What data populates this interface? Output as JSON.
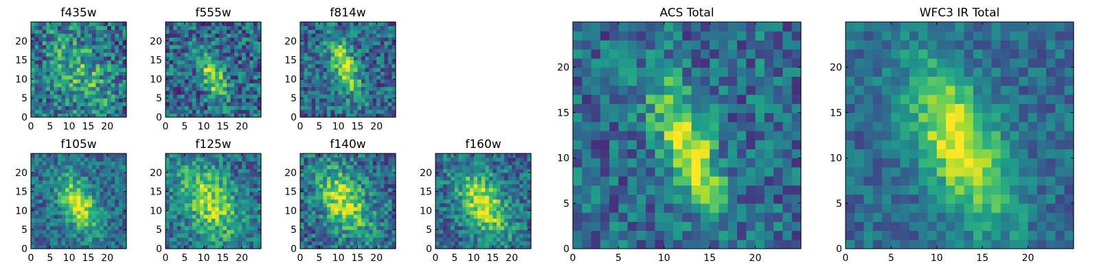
{
  "chart_data": [
    {
      "type": "heatmap",
      "title": "f435w",
      "grid_size": 25,
      "xlim": [
        0,
        25
      ],
      "ylim": [
        0,
        25
      ],
      "x_ticks": [
        0,
        5,
        10,
        15,
        20
      ],
      "y_ticks": [
        0,
        5,
        10,
        15,
        20
      ],
      "colormap": "viridis",
      "grid": false,
      "peak": [
        12,
        11
      ],
      "noise": 0.6,
      "spread": [
        5,
        7
      ],
      "strength": 0.45
    },
    {
      "type": "heatmap",
      "title": "f555w",
      "grid_size": 25,
      "xlim": [
        0,
        25
      ],
      "ylim": [
        0,
        25
      ],
      "x_ticks": [
        0,
        5,
        10,
        15,
        20
      ],
      "y_ticks": [
        0,
        5,
        10,
        15,
        20
      ],
      "colormap": "viridis",
      "grid": false,
      "peak": [
        12,
        10
      ],
      "noise": 0.55,
      "spread": [
        2,
        4
      ],
      "strength": 0.8
    },
    {
      "type": "heatmap",
      "title": "f814w",
      "grid_size": 25,
      "xlim": [
        0,
        25
      ],
      "ylim": [
        0,
        25
      ],
      "x_ticks": [
        0,
        5,
        10,
        15,
        20
      ],
      "y_ticks": [
        0,
        5,
        10,
        15,
        20
      ],
      "colormap": "viridis",
      "grid": false,
      "peak": [
        11,
        13
      ],
      "noise": 0.5,
      "spread": [
        2,
        5
      ],
      "strength": 0.9
    },
    {
      "type": "heatmap",
      "title": "f105w",
      "grid_size": 25,
      "xlim": [
        0,
        25
      ],
      "ylim": [
        0,
        25
      ],
      "x_ticks": [
        0,
        5,
        10,
        15,
        20
      ],
      "y_ticks": [
        0,
        5,
        10,
        15,
        20
      ],
      "colormap": "viridis",
      "grid": false,
      "peak": [
        12,
        11
      ],
      "noise": 0.4,
      "spread": [
        3,
        5
      ],
      "strength": 0.9
    },
    {
      "type": "heatmap",
      "title": "f125w",
      "grid_size": 25,
      "xlim": [
        0,
        25
      ],
      "ylim": [
        0,
        25
      ],
      "x_ticks": [
        0,
        5,
        10,
        15,
        20
      ],
      "y_ticks": [
        0,
        5,
        10,
        15,
        20
      ],
      "colormap": "viridis",
      "grid": false,
      "peak": [
        11,
        12
      ],
      "noise": 0.45,
      "spread": [
        5,
        7
      ],
      "strength": 0.75
    },
    {
      "type": "heatmap",
      "title": "f140w",
      "grid_size": 25,
      "xlim": [
        0,
        25
      ],
      "ylim": [
        0,
        25
      ],
      "x_ticks": [
        0,
        5,
        10,
        15,
        20
      ],
      "y_ticks": [
        0,
        5,
        10,
        15,
        20
      ],
      "colormap": "viridis",
      "grid": false,
      "peak": [
        11,
        12
      ],
      "noise": 0.5,
      "spread": [
        4,
        6
      ],
      "strength": 0.8
    },
    {
      "type": "heatmap",
      "title": "f160w",
      "grid_size": 25,
      "xlim": [
        0,
        25
      ],
      "ylim": [
        0,
        25
      ],
      "x_ticks": [
        0,
        5,
        10,
        15,
        20
      ],
      "y_ticks": [
        0,
        5,
        10,
        15,
        20
      ],
      "colormap": "viridis",
      "grid": false,
      "peak": [
        12,
        11
      ],
      "noise": 0.45,
      "spread": [
        4,
        6
      ],
      "strength": 0.85
    },
    {
      "type": "heatmap",
      "title": "ACS Total",
      "grid_size": 25,
      "xlim": [
        0,
        25
      ],
      "ylim": [
        0,
        25
      ],
      "x_ticks": [
        0,
        5,
        10,
        15,
        20
      ],
      "y_ticks": [
        0,
        5,
        10,
        15,
        20
      ],
      "colormap": "viridis",
      "grid": false,
      "peak": [
        12,
        11
      ],
      "noise": 0.45,
      "spread": [
        2,
        5
      ],
      "strength": 0.9
    },
    {
      "type": "heatmap",
      "title": "WFC3 IR Total",
      "grid_size": 25,
      "xlim": [
        0,
        25
      ],
      "ylim": [
        0,
        25
      ],
      "x_ticks": [
        0,
        5,
        10,
        15,
        20
      ],
      "y_ticks": [
        0,
        5,
        10,
        15,
        20
      ],
      "colormap": "viridis",
      "grid": false,
      "peak": [
        12,
        11
      ],
      "noise": 0.3,
      "spread": [
        3,
        6
      ],
      "strength": 0.95
    }
  ]
}
